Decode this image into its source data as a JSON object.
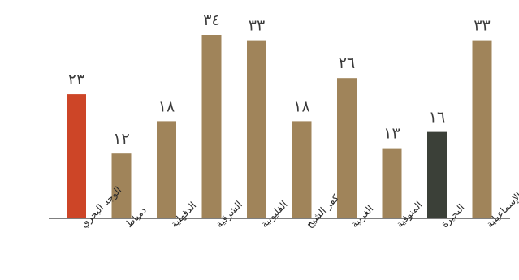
{
  "chart_data": {
    "type": "bar",
    "categories": [
      "الوجه البحري",
      "دمياط",
      "الدقهلية",
      "الشرقية",
      "القليوبية",
      "كفر الشيخ",
      "الغربية",
      "المنوفية",
      "البحيرة",
      "الإسماعيلية"
    ],
    "values": [
      23,
      12,
      18,
      34,
      33,
      18,
      26,
      13,
      16,
      33
    ],
    "value_labels": [
      "٢٣",
      "١٢",
      "١٨",
      "٣٤",
      "٣٣",
      "١٨",
      "٢٦",
      "١٣",
      "١٦",
      "٣٣"
    ],
    "colors": [
      "#cd4527",
      "#a0845a",
      "#a0845a",
      "#a0845a",
      "#a0845a",
      "#a0845a",
      "#a0845a",
      "#a0845a",
      "#3b4038",
      "#a0845a"
    ],
    "axis_color": "#333333",
    "ylim": [
      0,
      34
    ],
    "grid": false,
    "legend": "none",
    "title": "",
    "xlabel": "",
    "ylabel": ""
  }
}
